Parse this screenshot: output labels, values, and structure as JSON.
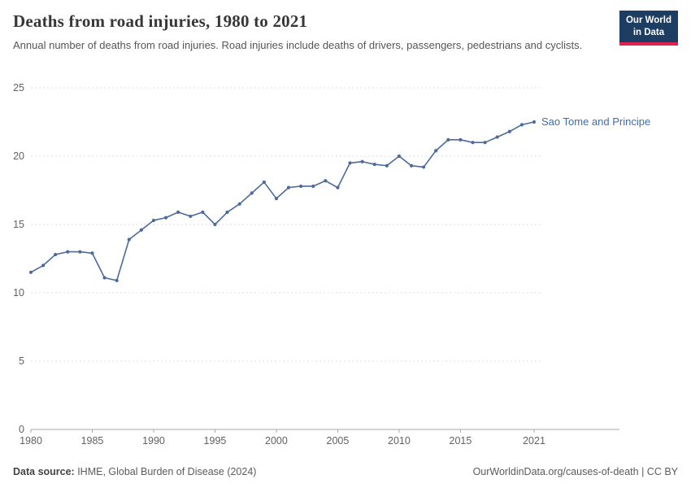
{
  "header": {
    "title": "Deaths from road injuries, 1980 to 2021",
    "subtitle": "Annual number of deaths from road injuries. Road injuries include deaths of drivers, passengers, pedestrians and cyclists.",
    "logo": {
      "line1": "Our World",
      "line2": "in Data"
    }
  },
  "footer": {
    "source_label": "Data source:",
    "source_text": " IHME, Global Burden of Disease (2024)",
    "right_text": "OurWorldinData.org/causes-of-death | CC BY"
  },
  "colors": {
    "line": "#4c6a9c",
    "series_label": "#3b6cb5",
    "axis_text": "#616161",
    "gridline": "#dddddd",
    "axis_line": "#a7a7a7",
    "logo_bg": "#1d3d63",
    "logo_accent": "#e0234e"
  },
  "chart_data": {
    "type": "line",
    "title": "Deaths from road injuries, 1980 to 2021",
    "xlabel": "",
    "ylabel": "",
    "ylim": [
      0,
      25
    ],
    "yticks": [
      0,
      5,
      10,
      15,
      20,
      25
    ],
    "xticks": [
      1980,
      1985,
      1990,
      1995,
      2000,
      2005,
      2010,
      2015,
      2021
    ],
    "grid": "dashed-horizontal",
    "legend_position": "end-of-line-label",
    "x": [
      1980,
      1981,
      1982,
      1983,
      1984,
      1985,
      1986,
      1987,
      1988,
      1989,
      1990,
      1991,
      1992,
      1993,
      1994,
      1995,
      1996,
      1997,
      1998,
      1999,
      2000,
      2001,
      2002,
      2003,
      2004,
      2005,
      2006,
      2007,
      2008,
      2009,
      2010,
      2011,
      2012,
      2013,
      2014,
      2015,
      2016,
      2017,
      2018,
      2019,
      2020,
      2021
    ],
    "series": [
      {
        "name": "Sao Tome and Principe",
        "color": "#4c6a9c",
        "values": [
          11.5,
          12.0,
          12.8,
          13.0,
          13.0,
          12.9,
          11.1,
          10.9,
          13.9,
          14.6,
          15.3,
          15.5,
          15.9,
          15.6,
          15.9,
          15.0,
          15.9,
          16.5,
          17.3,
          18.1,
          16.9,
          17.7,
          17.8,
          17.8,
          18.2,
          17.7,
          19.5,
          19.6,
          19.4,
          19.3,
          20.0,
          19.3,
          19.2,
          20.4,
          21.2,
          21.2,
          21.0,
          21.0,
          21.4,
          21.8,
          22.3,
          22.5
        ]
      }
    ]
  }
}
